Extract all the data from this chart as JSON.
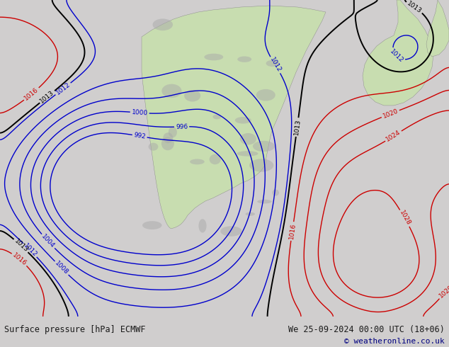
{
  "title_left": "Surface pressure [hPa] ECMWF",
  "title_right": "We 25-09-2024 00:00 UTC (18+06)",
  "copyright": "© weatheronline.co.uk",
  "bg_color": "#d0cece",
  "land_color": "#c8ddb0",
  "figsize": [
    6.34,
    4.9
  ],
  "dpi": 100,
  "bottom_bar_color": "#e8e8e8",
  "text_color": "#1a1a1a",
  "blue_contour_color": "#0000cc",
  "red_contour_color": "#cc0000",
  "black_contour_color": "#000000"
}
